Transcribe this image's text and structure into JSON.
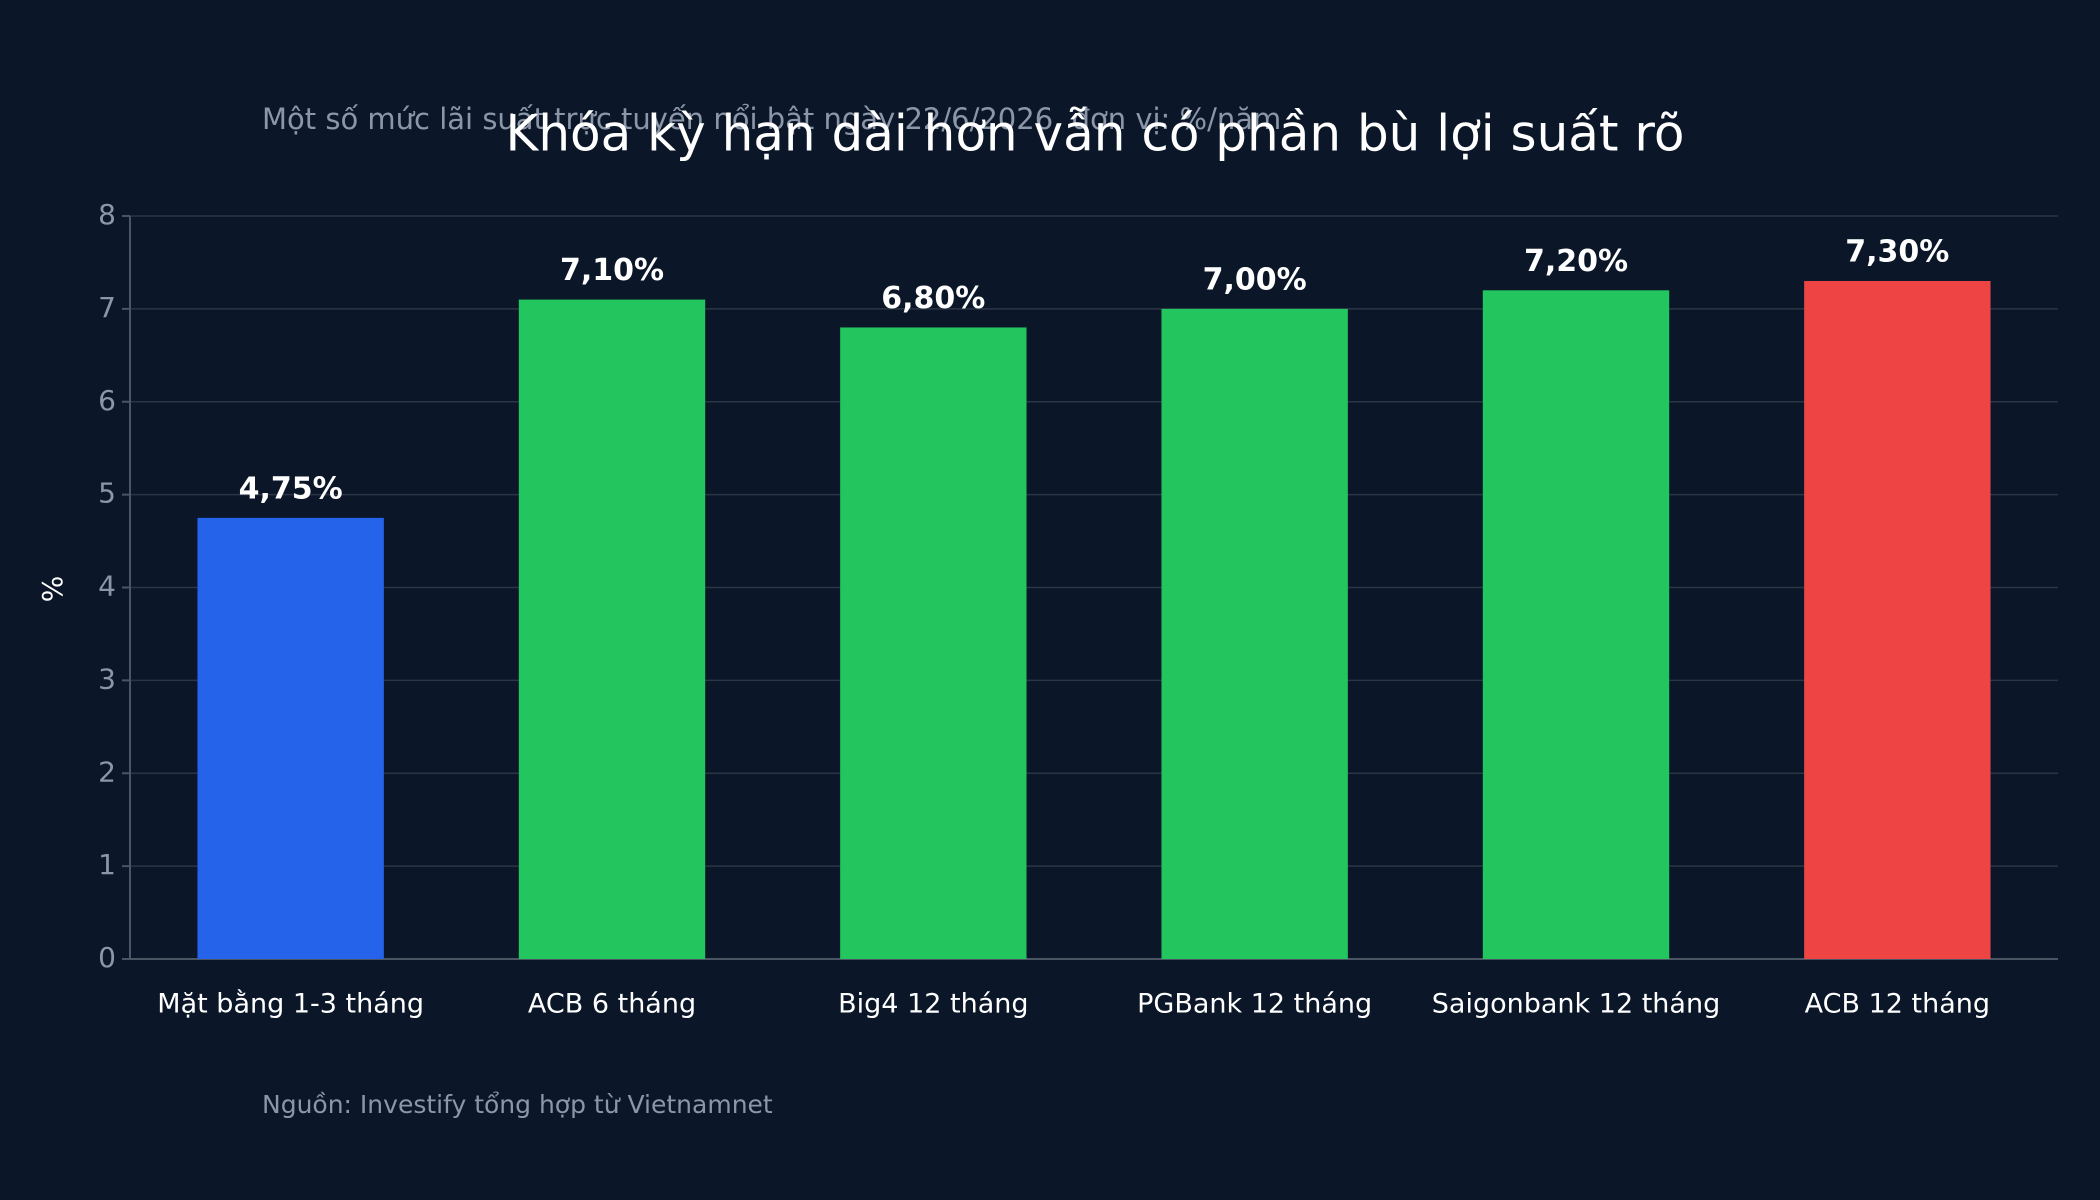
{
  "chart_data": {
    "type": "bar",
    "title": "Khóa kỳ hạn dài hơn vẫn có phần bù lợi suất rõ",
    "subtitle": "Một số mức lãi suất trực tuyến nổi bật ngày 22/6/2026, đơn vị: %/năm",
    "source": "Nguồn: Investify tổng hợp từ Vietnamnet",
    "ylabel": "%",
    "categories": [
      "Mặt bằng 1-3 tháng",
      "ACB 6 tháng",
      "Big4 12 tháng",
      "PGBank 12 tháng",
      "Saigonbank 12 tháng",
      "ACB 12 tháng"
    ],
    "values": [
      4.75,
      7.1,
      6.8,
      7.0,
      7.2,
      7.3
    ],
    "value_labels": [
      "4,75%",
      "7,10%",
      "6,80%",
      "7,00%",
      "7,20%",
      "7,30%"
    ],
    "colors": [
      "#2563eb",
      "#22c55e",
      "#22c55e",
      "#22c55e",
      "#22c55e",
      "#ef4444"
    ],
    "ylim": [
      0,
      8
    ],
    "yticks": [
      0,
      1,
      2,
      3,
      4,
      5,
      6,
      7,
      8
    ],
    "grid": true
  }
}
